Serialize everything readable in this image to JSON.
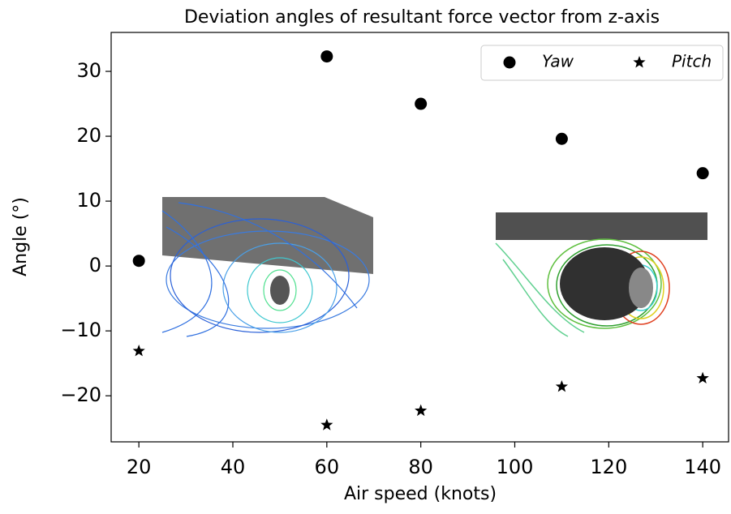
{
  "chart_data": {
    "type": "scatter",
    "title": "Deviation angles of resultant force vector from z-axis",
    "x_label": "Air speed (knots)",
    "y_label": "Angle (°)",
    "x": [
      20,
      60,
      80,
      110,
      140
    ],
    "series": [
      {
        "name": "Yaw",
        "color": "#000000",
        "marker": "circle",
        "values": [
          0.8,
          32.3,
          25.0,
          19.6,
          14.3
        ]
      },
      {
        "name": "Pitch",
        "color": "#000000",
        "marker": "star",
        "values": [
          -13.1,
          -24.5,
          -22.3,
          -18.6,
          -17.3
        ]
      }
    ],
    "xlim": [
      14.1,
      145.5
    ],
    "ylim": [
      -27.1,
      36
    ],
    "xticks": [
      20,
      40,
      60,
      80,
      100,
      120,
      140
    ],
    "yticks": [
      {
        "value": -20,
        "label": "−20"
      },
      {
        "value": -10,
        "label": "−10"
      },
      0,
      10,
      20,
      30
    ],
    "legend": "upper right"
  }
}
